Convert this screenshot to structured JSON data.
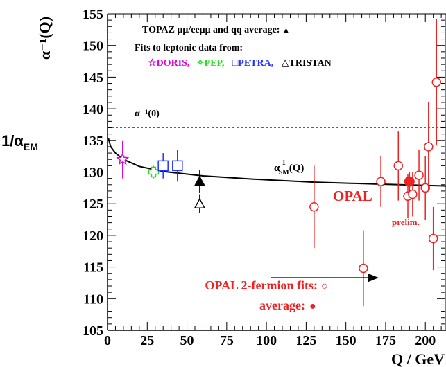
{
  "chart_data": {
    "type": "scatter",
    "xlabel": "Q / GeV",
    "ylabel": "α⁻¹(Q)",
    "left_label_main": "1/α",
    "left_label_sub": "EM",
    "xlim": [
      0,
      213
    ],
    "ylim": [
      105,
      155
    ],
    "x_ticks": [
      "0",
      "25",
      "50",
      "75",
      "100",
      "125",
      "150",
      "175",
      "200"
    ],
    "y_ticks": [
      "105",
      "110",
      "115",
      "120",
      "125",
      "130",
      "135",
      "140",
      "145",
      "150",
      "155"
    ],
    "reference_line": {
      "label": "α⁻¹(0)",
      "y": 137.04,
      "style": "dashed"
    },
    "sm_curve": {
      "label": "α⁻¹SM(Q)",
      "label_main": "α",
      "label_sup": "-1",
      "label_sub": "SM",
      "label_tail": "(Q)",
      "points": [
        [
          0.5,
          135.4
        ],
        [
          2,
          134.0
        ],
        [
          5,
          133.0
        ],
        [
          10,
          132.0
        ],
        [
          20,
          130.9
        ],
        [
          35,
          130.1
        ],
        [
          60,
          129.4
        ],
        [
          91,
          128.9
        ],
        [
          130,
          128.4
        ],
        [
          170,
          128.1
        ],
        [
          213,
          127.8
        ]
      ]
    },
    "legend": {
      "line1": "TOPAZ μμ/eeμμ and qq average:",
      "line1_marker": "▲",
      "line2": "Fits to leptonic data from:",
      "entries": [
        {
          "marker": "☆",
          "label": "DORIS,",
          "color": "#e000e0"
        },
        {
          "marker": "✧",
          "label": "PEP,",
          "color": "#22dd22"
        },
        {
          "marker": "□",
          "label": "PETRA,",
          "color": "#2233ff"
        },
        {
          "marker": "△",
          "label": "TRISTAN",
          "color": "#000000"
        }
      ]
    },
    "series": [
      {
        "name": "DORIS",
        "color": "#e000e0",
        "marker": "star",
        "points": [
          {
            "x": 9.5,
            "y": 132.0,
            "err": 3.0
          }
        ]
      },
      {
        "name": "PEP",
        "color": "#22dd22",
        "marker": "cross",
        "points": [
          {
            "x": 29,
            "y": 130.0,
            "err": 1.0
          }
        ]
      },
      {
        "name": "PETRA",
        "color": "#2233ff",
        "marker": "square",
        "points": [
          {
            "x": 35,
            "y": 131.0,
            "err": 2.0
          },
          {
            "x": 44,
            "y": 131.0,
            "err": 2.5
          }
        ]
      },
      {
        "name": "TRISTAN",
        "color": "#000000",
        "marker": "triangle-open",
        "points": [
          {
            "x": 58,
            "y": 125.0,
            "err": 1.5
          }
        ]
      },
      {
        "name": "TOPAZ",
        "color": "#000000",
        "marker": "triangle-filled",
        "points": [
          {
            "x": 58,
            "y": 128.5,
            "err": 1.8
          }
        ]
      },
      {
        "name": "OPAL 2-fermion fits",
        "color": "#ee2222",
        "marker": "circle-open",
        "points": [
          {
            "x": 130,
            "y": 124.5,
            "err": 6.5
          },
          {
            "x": 161,
            "y": 114.8,
            "err": 6.0
          },
          {
            "x": 172,
            "y": 128.5,
            "err": 4.0
          },
          {
            "x": 183,
            "y": 131.0,
            "err": 5.5
          },
          {
            "x": 189,
            "y": 126.2,
            "err": 3.5
          },
          {
            "x": 192,
            "y": 126.5,
            "err": 3.5
          },
          {
            "x": 196,
            "y": 129.5,
            "err": 4.0
          },
          {
            "x": 200,
            "y": 127.5,
            "err": 5.0
          },
          {
            "x": 202,
            "y": 134.0,
            "err": 7.0
          },
          {
            "x": 205,
            "y": 119.5,
            "err": 5.0
          },
          {
            "x": 207,
            "y": 144.2,
            "err": 10.0
          }
        ]
      },
      {
        "name": "OPAL average",
        "color": "#ee2222",
        "marker": "circle-filled",
        "points": [
          {
            "x": 190,
            "y": 128.5,
            "err": 1.5
          }
        ]
      }
    ],
    "annotations": {
      "opal": "OPAL",
      "prelim": "prelim.",
      "fits_label": "OPAL 2-fermion fits:",
      "fits_marker": "○",
      "average_label": "average:",
      "average_marker": "●",
      "arrow": {
        "x_from": 103,
        "x_to": 170,
        "y": 113.3
      }
    },
    "colors": {
      "opal": "#ee2222",
      "axis": "#000000",
      "curve": "#000000"
    },
    "grid": false,
    "legend_placement": "top-left"
  }
}
